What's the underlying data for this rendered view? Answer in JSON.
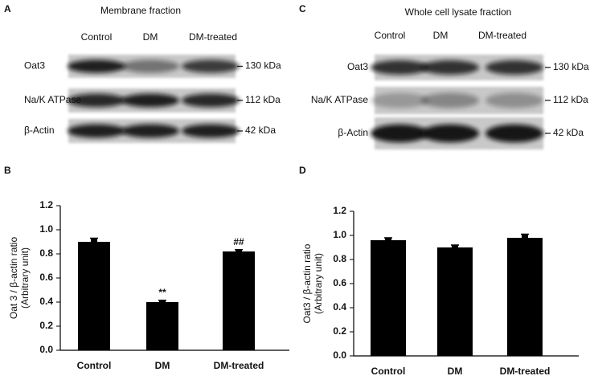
{
  "panels": [
    {
      "letter": "A",
      "title": "Membrane fraction",
      "lanes": [
        "Control",
        "DM",
        "DM-treated"
      ],
      "rows": [
        "Oat3",
        "Na/K ATPase",
        "β-Actin"
      ],
      "sizes": [
        "130 kDa",
        "112 kDa",
        "42 kDa"
      ]
    },
    {
      "letter": "C",
      "title": "Whole cell lysate fraction",
      "lanes": [
        "Control",
        "DM",
        "DM-treated"
      ],
      "rows": [
        "Oat3",
        "Na/K ATPase",
        "β-Actin"
      ],
      "sizes": [
        "130 kDa",
        "112 kDa",
        "42 kDa"
      ]
    }
  ],
  "chart_data": [
    {
      "type": "bar",
      "letter": "B",
      "ylabel": [
        "Oat 3 / β-actin ratio",
        "(Arbitrary unit)"
      ],
      "categories": [
        "Control",
        "DM",
        "DM-treated"
      ],
      "values": [
        0.9,
        0.4,
        0.82
      ],
      "errors": [
        0.03,
        0.015,
        0.015
      ],
      "significance": [
        null,
        "**",
        "##"
      ],
      "color": "#000000",
      "ylim": [
        0,
        1.2
      ],
      "yticks": [
        {
          "value": 0,
          "label": "0.0"
        },
        0.2,
        0.4,
        0.6,
        0.8,
        {
          "value": 1,
          "label": "1.0"
        },
        1.2
      ]
    },
    {
      "type": "bar",
      "letter": "D",
      "ylabel": [
        "Oat3 / β-actin ratio",
        "(Arbitrary unit)"
      ],
      "categories": [
        "Control",
        "DM",
        "DM-treated"
      ],
      "values": [
        0.96,
        0.9,
        0.98
      ],
      "errors": [
        0.02,
        0.02,
        0.03
      ],
      "color": "#000000",
      "ylim": [
        0,
        1.2
      ],
      "yticks": [
        {
          "value": 0,
          "label": "0.0"
        },
        0.2,
        0.4,
        0.6,
        0.8,
        {
          "value": 1,
          "label": "1.0"
        },
        1.2
      ]
    }
  ]
}
